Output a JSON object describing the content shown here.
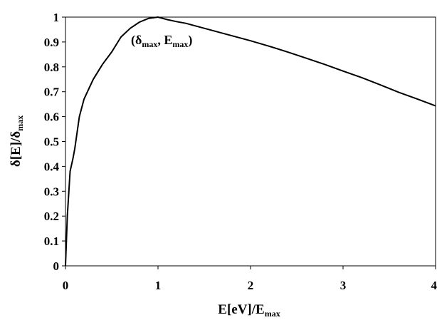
{
  "chart_data": {
    "type": "line",
    "title": "",
    "xlabel": {
      "main": "E[eV]/E",
      "sub": "max"
    },
    "ylabel": {
      "main": "δ[E]/δ",
      "sub": "max"
    },
    "xlim": [
      0,
      4
    ],
    "ylim": [
      0,
      1
    ],
    "xticks": [
      0,
      1,
      2,
      3,
      4
    ],
    "yticks": [
      0,
      0.1,
      0.2,
      0.3,
      0.4,
      0.5,
      0.6,
      0.7,
      0.8,
      0.9,
      1
    ],
    "xtick_labels": [
      "0",
      "1",
      "2",
      "3",
      "4"
    ],
    "ytick_labels": [
      "0",
      "0.1",
      "0.2",
      "0.3",
      "0.4",
      "0.5",
      "0.6",
      "0.7",
      "0.8",
      "0.9",
      "1"
    ],
    "grid": false,
    "legend": "none",
    "series": [
      {
        "color": "#000000",
        "x": [
          0,
          0.02,
          0.05,
          0.08,
          0.1,
          0.15,
          0.2,
          0.25,
          0.3,
          0.4,
          0.5,
          0.6,
          0.7,
          0.8,
          0.9,
          1.0,
          1.1,
          1.2,
          1.3,
          1.4,
          1.5,
          1.6,
          1.8,
          2.0,
          2.2,
          2.4,
          2.6,
          2.8,
          3.0,
          3.2,
          3.4,
          3.6,
          3.8,
          4.0
        ],
        "y": [
          0,
          0.2,
          0.38,
          0.43,
          0.47,
          0.6,
          0.67,
          0.71,
          0.75,
          0.81,
          0.86,
          0.92,
          0.955,
          0.98,
          0.995,
          1.0,
          0.99,
          0.982,
          0.975,
          0.965,
          0.955,
          0.945,
          0.925,
          0.905,
          0.883,
          0.86,
          0.835,
          0.81,
          0.783,
          0.757,
          0.728,
          0.698,
          0.671,
          0.643
        ]
      }
    ],
    "annotations": [
      {
        "x": 1.0,
        "y": 1.0,
        "parts": [
          {
            "text": "(δ",
            "sub": false
          },
          {
            "text": "max",
            "sub": true
          },
          {
            "text": ", E",
            "sub": false
          },
          {
            "text": "max",
            "sub": true
          },
          {
            "text": ")",
            "sub": false
          }
        ]
      }
    ]
  }
}
